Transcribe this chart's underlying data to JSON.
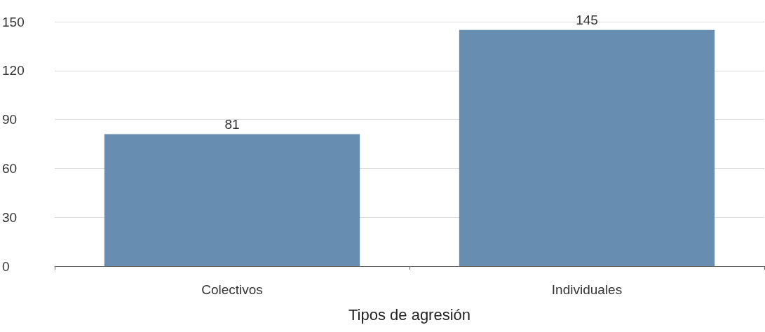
{
  "chart_data": {
    "type": "bar",
    "xlabel": "Tipos de agresión",
    "categories": [
      "Colectivos",
      "Individuales"
    ],
    "values": [
      81,
      145
    ],
    "color": "#678eb1",
    "ylim": [
      0,
      150
    ],
    "yticks": [
      0,
      30,
      60,
      90,
      120,
      150
    ],
    "grid": "y",
    "data_labels": true
  }
}
